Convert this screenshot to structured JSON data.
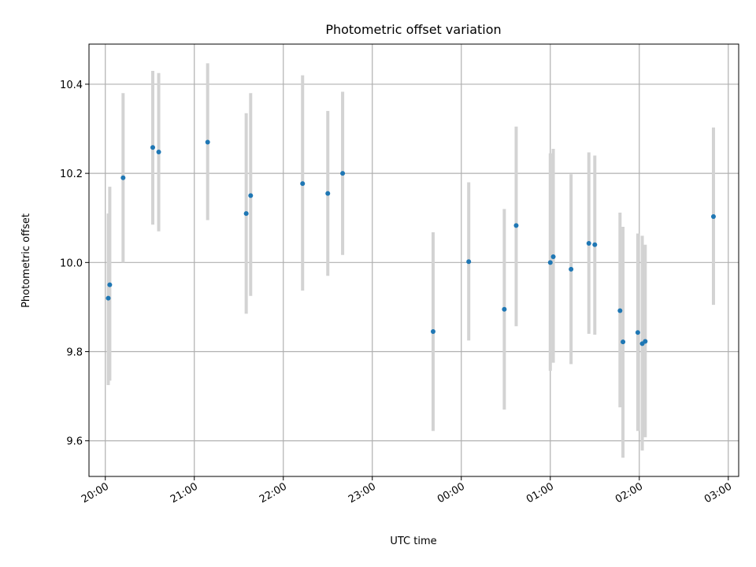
{
  "chart_data": {
    "type": "scatter",
    "title": "Photometric offset variation",
    "xlabel": "UTC time",
    "ylabel": "Photometric offset",
    "xlim": [
      "19:49",
      "03:07"
    ],
    "ylim": [
      9.52,
      10.49
    ],
    "x_ticks": [
      "20:00",
      "21:00",
      "22:00",
      "23:00",
      "00:00",
      "01:00",
      "02:00",
      "03:00"
    ],
    "y_ticks": [
      9.6,
      9.8,
      10.0,
      10.2,
      10.4
    ],
    "grid": true,
    "colors": {
      "point": "#1f77b4",
      "errorbar": "#d3d3d3",
      "grid": "#b0b0b0"
    },
    "points": [
      {
        "x": "20:02",
        "y": 9.92,
        "lo": 9.725,
        "hi": 10.11
      },
      {
        "x": "20:03",
        "y": 9.95,
        "lo": 9.735,
        "hi": 10.17
      },
      {
        "x": "20:12",
        "y": 10.19,
        "lo": 10.0,
        "hi": 10.38
      },
      {
        "x": "20:32",
        "y": 10.258,
        "lo": 10.085,
        "hi": 10.43
      },
      {
        "x": "20:36",
        "y": 10.248,
        "lo": 10.07,
        "hi": 10.425
      },
      {
        "x": "21:09",
        "y": 10.27,
        "lo": 10.095,
        "hi": 10.447
      },
      {
        "x": "21:35",
        "y": 10.11,
        "lo": 9.885,
        "hi": 10.335
      },
      {
        "x": "21:38",
        "y": 10.15,
        "lo": 9.925,
        "hi": 10.38
      },
      {
        "x": "22:13",
        "y": 10.177,
        "lo": 9.937,
        "hi": 10.42
      },
      {
        "x": "22:30",
        "y": 10.155,
        "lo": 9.97,
        "hi": 10.34
      },
      {
        "x": "22:40",
        "y": 10.2,
        "lo": 10.017,
        "hi": 10.383
      },
      {
        "x": "23:41",
        "y": 9.845,
        "lo": 9.622,
        "hi": 10.068
      },
      {
        "x": "00:05",
        "y": 10.002,
        "lo": 9.825,
        "hi": 10.18
      },
      {
        "x": "00:29",
        "y": 9.895,
        "lo": 9.67,
        "hi": 10.12
      },
      {
        "x": "00:37",
        "y": 10.083,
        "lo": 9.857,
        "hi": 10.305
      },
      {
        "x": "01:00",
        "y": 10.0,
        "lo": 9.757,
        "hi": 10.245
      },
      {
        "x": "01:02",
        "y": 10.013,
        "lo": 9.775,
        "hi": 10.255
      },
      {
        "x": "01:14",
        "y": 9.985,
        "lo": 9.772,
        "hi": 10.198
      },
      {
        "x": "01:26",
        "y": 10.043,
        "lo": 9.84,
        "hi": 10.247
      },
      {
        "x": "01:30",
        "y": 10.04,
        "lo": 9.838,
        "hi": 10.24
      },
      {
        "x": "01:47",
        "y": 9.892,
        "lo": 9.675,
        "hi": 10.112
      },
      {
        "x": "01:49",
        "y": 9.822,
        "lo": 9.562,
        "hi": 10.08
      },
      {
        "x": "01:59",
        "y": 9.843,
        "lo": 9.622,
        "hi": 10.065
      },
      {
        "x": "02:02",
        "y": 9.818,
        "lo": 9.578,
        "hi": 10.06
      },
      {
        "x": "02:04",
        "y": 9.823,
        "lo": 9.608,
        "hi": 10.04
      },
      {
        "x": "02:50",
        "y": 10.103,
        "lo": 9.905,
        "hi": 10.303
      }
    ]
  }
}
